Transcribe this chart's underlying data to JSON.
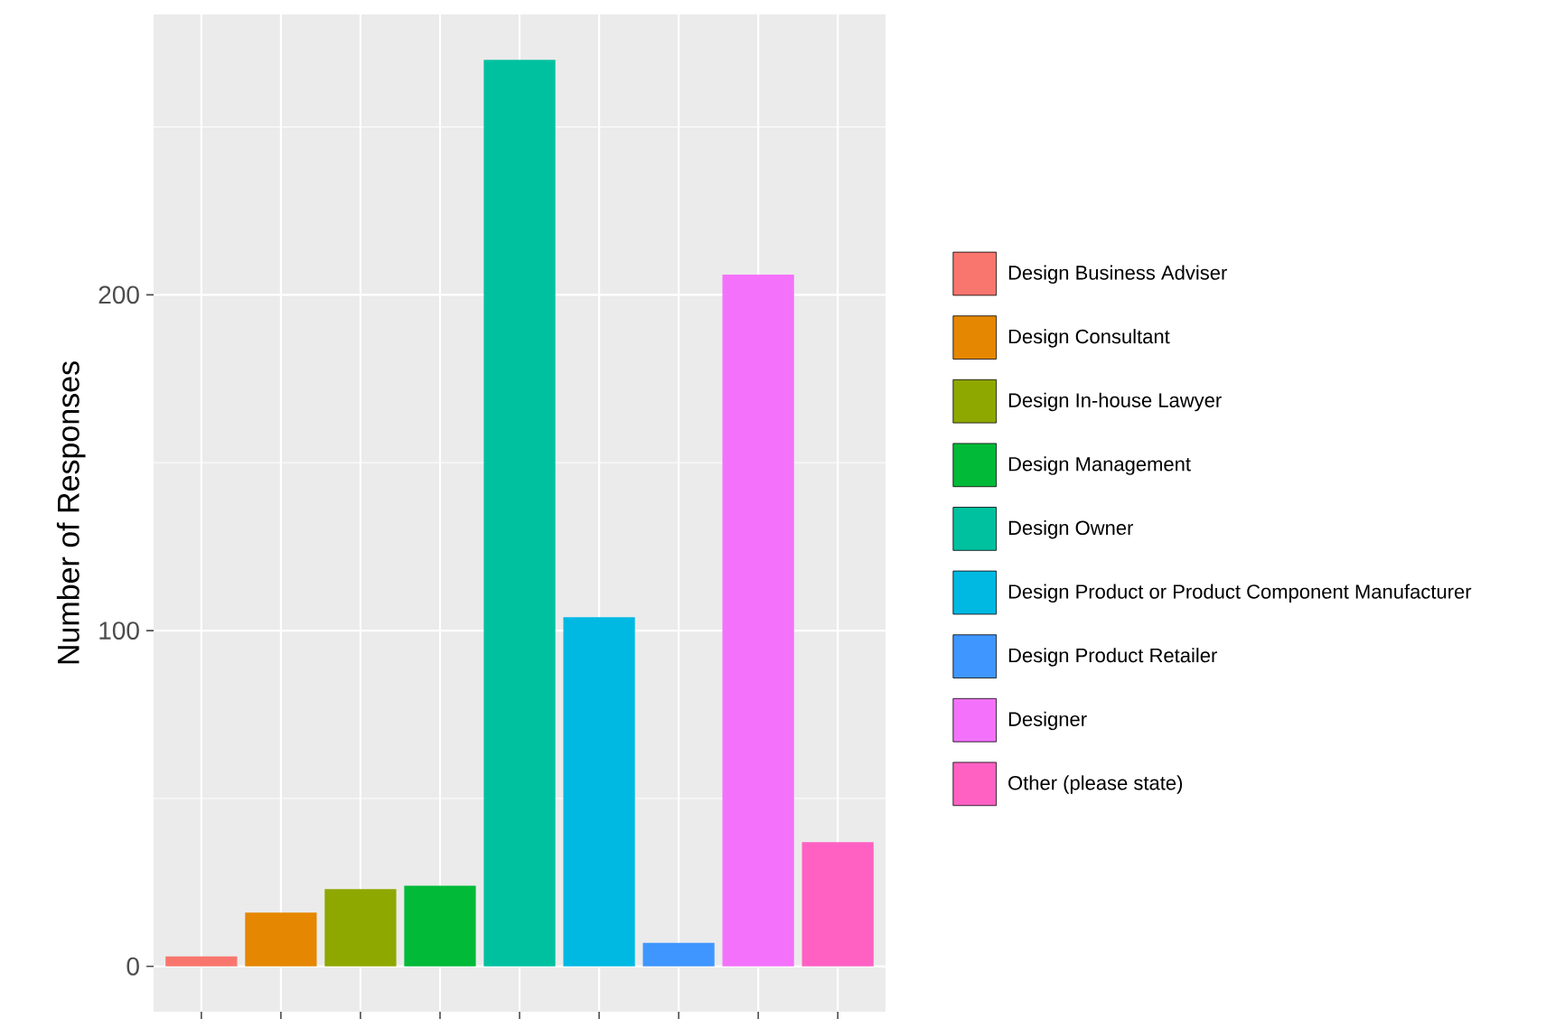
{
  "chart_data": {
    "type": "bar",
    "ylabel": "Number of Responses",
    "categories": [
      null,
      null,
      null,
      null,
      null,
      null,
      null,
      null,
      null
    ],
    "series": [
      {
        "name": "Design Business Adviser",
        "color": "#f8766d",
        "values": [
          3,
          null,
          null,
          null,
          null,
          null,
          null,
          null,
          null
        ]
      },
      {
        "name": "Design Consultant",
        "color": "#e58700",
        "values": [
          null,
          16,
          null,
          null,
          null,
          null,
          null,
          null,
          null
        ]
      },
      {
        "name": "Design In-house Lawyer",
        "color": "#8fa800",
        "values": [
          null,
          null,
          23,
          null,
          null,
          null,
          null,
          null,
          null
        ]
      },
      {
        "name": "Design Management",
        "color": "#00ba38",
        "values": [
          null,
          null,
          null,
          24,
          null,
          null,
          null,
          null,
          null
        ]
      },
      {
        "name": "Design Owner",
        "color": "#00c19f",
        "values": [
          null,
          null,
          null,
          null,
          270,
          null,
          null,
          null,
          null
        ]
      },
      {
        "name": "Design Product or Product Component Manufacturer",
        "color": "#00b9e3",
        "values": [
          null,
          null,
          null,
          null,
          null,
          104,
          null,
          null,
          null
        ]
      },
      {
        "name": "Design Product Retailer",
        "color": "#3f96ff",
        "values": [
          null,
          null,
          null,
          null,
          null,
          null,
          7,
          null,
          null
        ]
      },
      {
        "name": "Designer",
        "color": "#f472fb",
        "values": [
          null,
          null,
          null,
          null,
          null,
          null,
          null,
          206,
          null
        ]
      },
      {
        "name": "Other (please state)",
        "color": "#ff61c3",
        "values": [
          null,
          null,
          null,
          null,
          null,
          null,
          null,
          null,
          37
        ]
      }
    ],
    "ylim": [
      -13.5,
      283.5
    ],
    "yticks": [
      0,
      100,
      200
    ],
    "grid": true,
    "legend": "right",
    "tick_labels": "y"
  }
}
